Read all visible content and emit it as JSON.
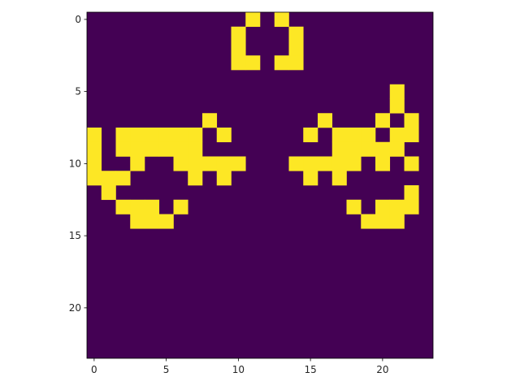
{
  "chart_data": {
    "type": "heatmap",
    "title": "",
    "xlabel": "",
    "ylabel": "",
    "rows": 24,
    "cols": 24,
    "xlim": [
      -0.5,
      23.5
    ],
    "ylim": [
      23.5,
      -0.5
    ],
    "grid": false,
    "legend": "none",
    "colormap": "viridis",
    "value_range": [
      0,
      1
    ],
    "colors": {
      "off": "#440154",
      "on": "#fde725"
    },
    "x_ticks": [
      0,
      5,
      10,
      15,
      20
    ],
    "y_ticks": [
      0,
      5,
      10,
      15,
      20
    ],
    "x_tick_labels": [
      "0",
      "5",
      "10",
      "15",
      "20"
    ],
    "y_tick_labels": [
      "0",
      "5",
      "10",
      "15",
      "20"
    ],
    "on_cells": {
      "0": [
        11,
        13
      ],
      "1": [
        10,
        14
      ],
      "2": [
        10,
        14
      ],
      "3": [
        10,
        11,
        13,
        14
      ],
      "5": [
        21
      ],
      "6": [
        21
      ],
      "7": [
        8,
        16,
        20,
        22
      ],
      "8": [
        0,
        2,
        3,
        4,
        5,
        6,
        7,
        9,
        15,
        17,
        18,
        19,
        21,
        22
      ],
      "9": [
        0,
        2,
        3,
        4,
        5,
        6,
        7,
        17,
        18,
        19,
        20,
        21
      ],
      "10": [
        0,
        3,
        6,
        7,
        8,
        9,
        10,
        14,
        15,
        16,
        17,
        18,
        20,
        22
      ],
      "11": [
        0,
        1,
        2,
        7,
        9,
        15,
        17
      ],
      "12": [
        1,
        22
      ],
      "13": [
        2,
        3,
        4,
        6,
        18,
        20,
        21,
        22
      ],
      "14": [
        3,
        4,
        5,
        19,
        20,
        21
      ]
    }
  }
}
